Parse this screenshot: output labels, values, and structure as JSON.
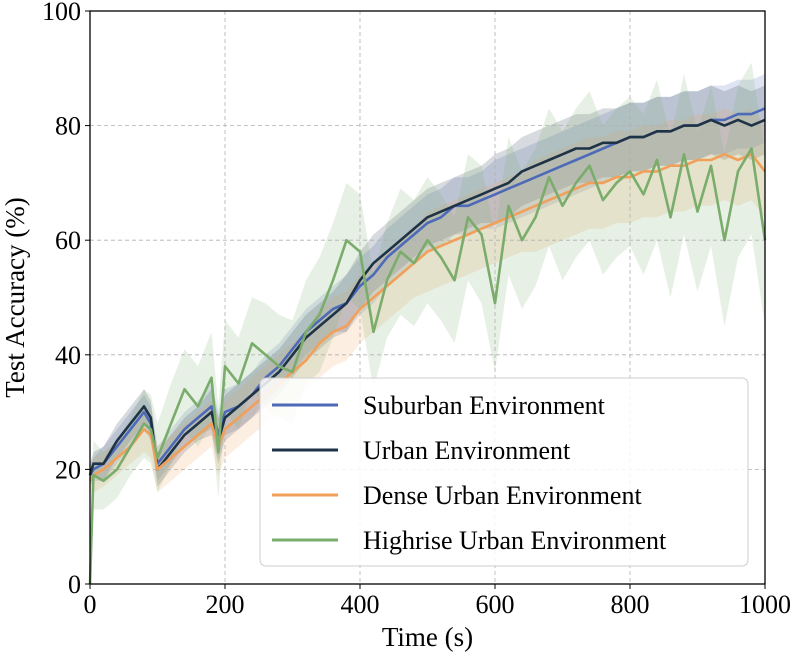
{
  "chart_data": {
    "type": "line",
    "title": "",
    "xlabel": "Time (s)",
    "ylabel": "Test Accuracy (%)",
    "xlim": [
      0,
      1000
    ],
    "ylim": [
      0,
      100
    ],
    "xticks": [
      0,
      200,
      400,
      600,
      800,
      1000
    ],
    "yticks": [
      0,
      20,
      40,
      60,
      80,
      100
    ],
    "grid": true,
    "legend_position": "lower-right",
    "series": [
      {
        "name": "Suburban Environment",
        "color": "#4c6ab8",
        "x": [
          0,
          5,
          20,
          40,
          60,
          80,
          90,
          100,
          120,
          140,
          160,
          180,
          190,
          200,
          220,
          240,
          260,
          280,
          300,
          320,
          340,
          360,
          380,
          400,
          420,
          440,
          460,
          480,
          500,
          520,
          540,
          560,
          580,
          600,
          620,
          640,
          660,
          680,
          700,
          720,
          740,
          760,
          780,
          800,
          820,
          840,
          860,
          880,
          900,
          920,
          940,
          960,
          980,
          1000
        ],
        "values": [
          19,
          20,
          21,
          24,
          27,
          30,
          28,
          21,
          24,
          27,
          29,
          31,
          26,
          30,
          31,
          33,
          36,
          38,
          41,
          44,
          46,
          48,
          49,
          52,
          54,
          57,
          59,
          61,
          63,
          64,
          66,
          66,
          67,
          68,
          69,
          70,
          71,
          72,
          73,
          74,
          75,
          76,
          77,
          78,
          78,
          79,
          79,
          80,
          80,
          81,
          81,
          82,
          82,
          83
        ],
        "band": [
          2,
          2,
          3,
          3,
          3,
          3,
          3,
          3,
          3,
          3,
          3,
          4,
          4,
          4,
          4,
          4,
          4,
          4,
          4,
          4,
          4,
          4,
          5,
          5,
          5,
          5,
          5,
          5,
          5,
          5,
          5,
          5,
          5,
          6,
          6,
          6,
          6,
          6,
          6,
          6,
          6,
          6,
          6,
          6,
          6,
          6,
          6,
          6,
          6,
          6,
          6,
          6,
          6,
          6
        ]
      },
      {
        "name": "Urban Environment",
        "color": "#1f3347",
        "x": [
          0,
          5,
          20,
          40,
          60,
          80,
          90,
          100,
          120,
          140,
          160,
          180,
          190,
          200,
          220,
          240,
          260,
          280,
          300,
          320,
          340,
          360,
          380,
          400,
          420,
          440,
          460,
          480,
          500,
          520,
          540,
          560,
          580,
          600,
          620,
          640,
          660,
          680,
          700,
          720,
          740,
          760,
          780,
          800,
          820,
          840,
          860,
          880,
          900,
          920,
          940,
          960,
          980,
          1000
        ],
        "values": [
          19,
          21,
          21,
          25,
          28,
          31,
          29,
          20,
          23,
          26,
          28,
          30,
          25,
          29,
          31,
          33,
          35,
          37,
          40,
          43,
          45,
          47,
          49,
          53,
          56,
          58,
          60,
          62,
          64,
          65,
          66,
          67,
          68,
          69,
          70,
          72,
          73,
          74,
          75,
          76,
          76,
          77,
          77,
          78,
          78,
          79,
          79,
          80,
          80,
          81,
          80,
          81,
          80,
          81
        ],
        "band": [
          2,
          2,
          3,
          3,
          3,
          3,
          3,
          3,
          3,
          3,
          3,
          4,
          4,
          4,
          4,
          4,
          4,
          4,
          4,
          4,
          4,
          4,
          5,
          5,
          5,
          5,
          5,
          5,
          5,
          5,
          5,
          5,
          5,
          6,
          6,
          6,
          6,
          6,
          6,
          6,
          6,
          6,
          6,
          6,
          6,
          6,
          6,
          6,
          6,
          6,
          6,
          6,
          6,
          6
        ]
      },
      {
        "name": "Dense Urban Environment",
        "color": "#f0a05a",
        "x": [
          0,
          5,
          20,
          40,
          60,
          80,
          90,
          100,
          120,
          140,
          160,
          180,
          190,
          200,
          220,
          240,
          260,
          280,
          300,
          320,
          340,
          360,
          380,
          400,
          420,
          440,
          460,
          480,
          500,
          520,
          540,
          560,
          580,
          600,
          620,
          640,
          660,
          680,
          700,
          720,
          740,
          760,
          780,
          800,
          820,
          840,
          860,
          880,
          900,
          920,
          940,
          960,
          980,
          1000
        ],
        "values": [
          18,
          19,
          20,
          22,
          24,
          27,
          26,
          20,
          22,
          24,
          26,
          28,
          24,
          27,
          29,
          31,
          33,
          35,
          37,
          39,
          42,
          44,
          45,
          48,
          50,
          52,
          54,
          56,
          58,
          59,
          60,
          61,
          62,
          63,
          64,
          65,
          66,
          67,
          68,
          69,
          70,
          70,
          71,
          71,
          72,
          72,
          73,
          73,
          74,
          74,
          75,
          74,
          75,
          72
        ],
        "band": [
          2,
          3,
          3,
          3,
          3,
          4,
          4,
          4,
          4,
          4,
          4,
          4,
          5,
          5,
          5,
          5,
          5,
          5,
          5,
          5,
          6,
          6,
          6,
          6,
          6,
          6,
          6,
          6,
          7,
          7,
          7,
          7,
          7,
          7,
          7,
          7,
          8,
          8,
          8,
          8,
          8,
          8,
          8,
          8,
          8,
          8,
          8,
          8,
          8,
          8,
          8,
          8,
          8,
          8
        ]
      },
      {
        "name": "Highrise Urban Environment",
        "color": "#7aac6b",
        "x": [
          0,
          5,
          20,
          40,
          60,
          80,
          90,
          100,
          120,
          140,
          160,
          180,
          190,
          200,
          220,
          240,
          260,
          280,
          300,
          320,
          340,
          360,
          380,
          400,
          420,
          440,
          460,
          480,
          500,
          520,
          540,
          560,
          580,
          600,
          620,
          640,
          660,
          680,
          700,
          720,
          740,
          760,
          780,
          800,
          820,
          840,
          860,
          880,
          900,
          920,
          940,
          960,
          980,
          1000
        ],
        "values": [
          0,
          19,
          18,
          20,
          24,
          28,
          27,
          22,
          28,
          34,
          31,
          36,
          23,
          38,
          35,
          42,
          40,
          38,
          37,
          44,
          47,
          53,
          60,
          58,
          44,
          53,
          58,
          56,
          60,
          57,
          53,
          64,
          61,
          49,
          66,
          60,
          64,
          71,
          66,
          70,
          73,
          67,
          70,
          72,
          68,
          74,
          64,
          75,
          65,
          73,
          60,
          72,
          76,
          60
        ],
        "band": [
          6,
          6,
          5,
          5,
          5,
          6,
          6,
          6,
          7,
          7,
          7,
          8,
          8,
          8,
          8,
          8,
          9,
          9,
          9,
          9,
          10,
          10,
          10,
          10,
          10,
          10,
          11,
          11,
          11,
          11,
          11,
          11,
          12,
          12,
          12,
          12,
          12,
          12,
          13,
          13,
          13,
          13,
          13,
          13,
          14,
          14,
          14,
          14,
          14,
          14,
          15,
          15,
          15,
          15
        ]
      }
    ]
  }
}
